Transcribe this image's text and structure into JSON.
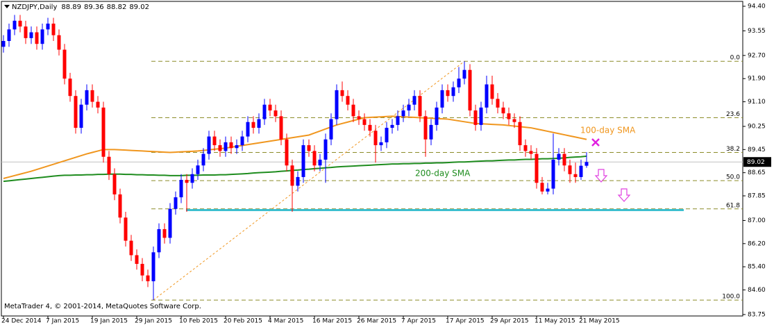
{
  "chart_data": {
    "type": "candlestick",
    "symbol": "NZDJPY,Daily",
    "footer": "MetaTrader 4, © 2001-2014, MetaQuotes Software Corp.",
    "up_color": "#0000ff",
    "down_color": "#ff0000",
    "ylim": [
      83.7,
      94.52
    ],
    "yticks": [
      {
        "value": 94.4,
        "label": "94.40"
      },
      93.55,
      {
        "value": 92.7,
        "label": "92.70"
      },
      {
        "value": 91.9,
        "label": "91.90"
      },
      {
        "value": 91.1,
        "label": "91.10"
      },
      90.25,
      89.45,
      88.65,
      87.85,
      {
        "value": 87,
        "label": "87.00"
      },
      {
        "value": 86.2,
        "label": "86.20"
      },
      {
        "value": 85.4,
        "label": "85.40"
      },
      {
        "value": 84.6,
        "label": "84.60"
      },
      83.75
    ],
    "categories": [
      "24 Dec 2014",
      null,
      null,
      null,
      null,
      null,
      null,
      null,
      "7 Jan 2015",
      null,
      null,
      null,
      null,
      null,
      null,
      null,
      "19 Jan 2015",
      null,
      null,
      null,
      null,
      null,
      null,
      null,
      "29 Jan 2015",
      null,
      null,
      null,
      null,
      null,
      null,
      null,
      "10 Feb 2015",
      null,
      null,
      null,
      null,
      null,
      null,
      null,
      "20 Feb 2015",
      null,
      null,
      null,
      null,
      null,
      null,
      null,
      "4 Mar 2015",
      null,
      null,
      null,
      null,
      null,
      null,
      null,
      "16 Mar 2015",
      null,
      null,
      null,
      null,
      null,
      null,
      null,
      "26 Mar 2015",
      null,
      null,
      null,
      null,
      null,
      null,
      null,
      "7 Apr 2015",
      null,
      null,
      null,
      null,
      null,
      null,
      null,
      "17 Apr 2015",
      null,
      null,
      null,
      null,
      null,
      null,
      null,
      "29 Apr 2015",
      null,
      null,
      null,
      null,
      null,
      null,
      null,
      "11 May 2015",
      null,
      null,
      null,
      null,
      null,
      null,
      null,
      "21 May 2015",
      null
    ],
    "ohlc": [
      [
        93.0,
        93.4,
        92.8,
        93.2
      ],
      [
        93.2,
        93.8,
        93.0,
        93.6
      ],
      [
        93.6,
        94.1,
        93.4,
        93.9
      ],
      [
        93.9,
        94.1,
        93.5,
        93.7
      ],
      [
        93.7,
        93.9,
        93.1,
        93.3
      ],
      [
        93.3,
        93.7,
        93.1,
        93.5
      ],
      [
        93.5,
        93.7,
        92.9,
        93.1
      ],
      [
        93.1,
        93.8,
        92.9,
        93.6
      ],
      [
        93.6,
        94.0,
        93.4,
        93.8
      ],
      [
        93.8,
        94.0,
        93.2,
        93.4
      ],
      [
        93.4,
        93.6,
        92.7,
        92.9
      ],
      [
        92.9,
        93.1,
        91.7,
        91.9
      ],
      [
        91.9,
        92.1,
        91.1,
        91.3
      ],
      [
        91.3,
        91.5,
        90.0,
        90.2
      ],
      [
        90.2,
        91.2,
        90.0,
        91.0
      ],
      [
        91.0,
        91.7,
        90.8,
        91.5
      ],
      [
        91.5,
        91.7,
        90.9,
        91.1
      ],
      [
        91.1,
        91.3,
        90.7,
        90.9
      ],
      [
        90.9,
        91.1,
        89.0,
        89.2
      ],
      [
        89.2,
        89.4,
        88.4,
        88.6
      ],
      [
        88.6,
        88.8,
        87.7,
        87.9
      ],
      [
        87.9,
        88.1,
        86.9,
        87.1
      ],
      [
        87.1,
        87.3,
        86.1,
        86.3
      ],
      [
        86.3,
        86.5,
        85.6,
        85.8
      ],
      [
        85.8,
        86.0,
        85.3,
        85.5
      ],
      [
        85.5,
        85.7,
        84.9,
        85.1
      ],
      [
        85.1,
        85.3,
        84.7,
        84.9
      ],
      [
        84.9,
        86.1,
        84.25,
        85.9
      ],
      [
        85.9,
        86.9,
        85.7,
        86.7
      ],
      [
        86.7,
        86.9,
        86.2,
        86.4
      ],
      [
        86.4,
        87.6,
        86.2,
        87.4
      ],
      [
        87.4,
        88.0,
        87.2,
        87.8
      ],
      [
        87.8,
        88.6,
        87.6,
        88.4
      ],
      [
        88.4,
        88.6,
        87.3,
        88.3
      ],
      [
        88.3,
        88.8,
        88.1,
        88.6
      ],
      [
        88.6,
        89.1,
        88.4,
        88.9
      ],
      [
        88.9,
        89.5,
        88.7,
        89.3
      ],
      [
        89.3,
        90.1,
        89.1,
        89.9
      ],
      [
        89.9,
        90.1,
        89.4,
        89.6
      ],
      [
        89.6,
        89.8,
        89.2,
        89.4
      ],
      [
        89.4,
        89.9,
        89.2,
        89.7
      ],
      [
        89.7,
        89.9,
        89.3,
        89.5
      ],
      [
        89.5,
        89.8,
        89.3,
        89.6
      ],
      [
        89.6,
        90.1,
        89.4,
        89.9
      ],
      [
        89.9,
        90.6,
        89.7,
        90.4
      ],
      [
        90.4,
        90.6,
        90.0,
        90.2
      ],
      [
        90.2,
        90.7,
        90.0,
        90.5
      ],
      [
        90.5,
        91.2,
        90.3,
        91.0
      ],
      [
        91.0,
        91.2,
        90.6,
        90.8
      ],
      [
        90.8,
        91.0,
        90.4,
        90.6
      ],
      [
        90.6,
        90.8,
        89.6,
        89.8
      ],
      [
        89.8,
        90.0,
        88.7,
        88.9
      ],
      [
        88.9,
        89.1,
        87.3,
        88.2
      ],
      [
        88.2,
        88.7,
        88.0,
        88.5
      ],
      [
        88.5,
        89.8,
        88.3,
        89.6
      ],
      [
        89.6,
        89.8,
        89.2,
        89.4
      ],
      [
        89.4,
        89.6,
        88.7,
        88.9
      ],
      [
        88.9,
        89.3,
        88.7,
        89.1
      ],
      [
        89.1,
        90.0,
        88.3,
        89.8
      ],
      [
        89.8,
        90.7,
        89.6,
        90.5
      ],
      [
        90.5,
        91.7,
        90.3,
        91.5
      ],
      [
        91.5,
        91.8,
        91.1,
        91.3
      ],
      [
        91.3,
        91.5,
        90.8,
        91.0
      ],
      [
        91.0,
        91.2,
        90.4,
        90.6
      ],
      [
        90.6,
        90.8,
        90.3,
        90.5
      ],
      [
        90.5,
        90.7,
        90.1,
        90.3
      ],
      [
        90.3,
        90.5,
        89.9,
        90.1
      ],
      [
        90.1,
        90.3,
        89.0,
        89.6
      ],
      [
        89.6,
        89.9,
        89.4,
        89.7
      ],
      [
        89.7,
        90.4,
        89.5,
        90.2
      ],
      [
        90.2,
        90.5,
        90.0,
        90.3
      ],
      [
        90.3,
        90.8,
        90.1,
        90.6
      ],
      [
        90.6,
        91.0,
        90.4,
        90.8
      ],
      [
        90.8,
        91.2,
        90.6,
        91.0
      ],
      [
        91.0,
        91.5,
        90.8,
        91.3
      ],
      [
        91.3,
        91.5,
        90.4,
        90.6
      ],
      [
        90.6,
        90.8,
        89.2,
        89.8
      ],
      [
        89.8,
        90.5,
        89.6,
        90.3
      ],
      [
        90.3,
        91.1,
        90.1,
        90.9
      ],
      [
        90.9,
        91.7,
        90.7,
        91.5
      ],
      [
        91.5,
        91.7,
        91.1,
        91.3
      ],
      [
        91.3,
        91.8,
        91.1,
        91.6
      ],
      [
        91.6,
        92.3,
        91.4,
        91.9
      ],
      [
        91.9,
        92.5,
        91.7,
        92.2
      ],
      [
        92.2,
        92.4,
        90.6,
        90.8
      ],
      [
        90.8,
        91.0,
        90.1,
        90.3
      ],
      [
        90.3,
        91.1,
        90.1,
        90.9
      ],
      [
        90.9,
        92.0,
        90.7,
        91.7
      ],
      [
        91.7,
        92.0,
        91.0,
        91.2
      ],
      [
        91.2,
        91.4,
        90.7,
        90.9
      ],
      [
        90.9,
        91.1,
        90.5,
        90.7
      ],
      [
        90.7,
        90.9,
        90.3,
        90.5
      ],
      [
        90.5,
        90.7,
        90.2,
        90.4
      ],
      [
        90.4,
        90.6,
        89.4,
        89.6
      ],
      [
        89.6,
        89.8,
        89.2,
        89.4
      ],
      [
        89.4,
        89.6,
        89.1,
        89.3
      ],
      [
        89.3,
        89.5,
        88.1,
        88.3
      ],
      [
        88.3,
        88.5,
        87.9,
        88.0
      ],
      [
        88.0,
        88.3,
        87.9,
        88.1
      ],
      [
        88.1,
        90.0,
        87.9,
        89.1
      ],
      [
        89.1,
        89.5,
        88.9,
        89.3
      ],
      [
        89.3,
        89.5,
        88.7,
        88.9
      ],
      [
        88.9,
        89.1,
        88.3,
        88.6
      ],
      [
        88.6,
        89.0,
        88.3,
        88.5
      ],
      [
        88.5,
        89.1,
        88.4,
        88.89
      ],
      [
        88.89,
        89.36,
        88.82,
        89.02
      ]
    ],
    "series": [
      {
        "name": "100-day SMA",
        "color": "#f0961e",
        "values": [
          88.45,
          88.5,
          88.55,
          88.6,
          88.65,
          88.7,
          88.76,
          88.82,
          88.88,
          88.94,
          89.0,
          89.06,
          89.12,
          89.18,
          89.24,
          89.3,
          89.35,
          89.4,
          89.45,
          89.45,
          89.45,
          89.44,
          89.43,
          89.42,
          89.41,
          89.4,
          89.39,
          89.38,
          89.37,
          89.36,
          89.35,
          89.36,
          89.37,
          89.38,
          89.39,
          89.4,
          89.42,
          89.44,
          89.46,
          89.48,
          89.5,
          89.53,
          89.56,
          89.59,
          89.62,
          89.65,
          89.68,
          89.71,
          89.74,
          89.77,
          89.8,
          89.83,
          89.86,
          89.89,
          89.92,
          89.95,
          90.02,
          90.09,
          90.16,
          90.23,
          90.3,
          90.35,
          90.4,
          90.45,
          90.5,
          90.55,
          90.56,
          90.57,
          90.58,
          90.59,
          90.6,
          90.59,
          90.58,
          90.57,
          90.56,
          90.55,
          90.54,
          90.53,
          90.52,
          90.51,
          90.5,
          90.47,
          90.44,
          90.41,
          90.38,
          90.35,
          90.34,
          90.33,
          90.32,
          90.31,
          90.3,
          90.28,
          90.26,
          90.24,
          90.22,
          90.2,
          90.16,
          90.12,
          90.08,
          90.04,
          90.0,
          89.96,
          89.92,
          89.88,
          89.84,
          89.8
        ]
      },
      {
        "name": "200-day SMA",
        "color": "#1e8c1e",
        "values": [
          88.35,
          88.37,
          88.39,
          88.41,
          88.43,
          88.45,
          88.47,
          88.49,
          88.51,
          88.53,
          88.55,
          88.56,
          88.56,
          88.57,
          88.57,
          88.58,
          88.58,
          88.59,
          88.59,
          88.6,
          88.6,
          88.6,
          88.59,
          88.59,
          88.58,
          88.58,
          88.57,
          88.57,
          88.56,
          88.56,
          88.55,
          88.55,
          88.55,
          88.56,
          88.56,
          88.56,
          88.57,
          88.57,
          88.57,
          88.58,
          88.58,
          88.59,
          88.6,
          88.61,
          88.62,
          88.64,
          88.65,
          88.66,
          88.67,
          88.68,
          88.7,
          88.71,
          88.73,
          88.74,
          88.76,
          88.77,
          88.79,
          88.8,
          88.82,
          88.83,
          88.85,
          88.86,
          88.87,
          88.88,
          88.89,
          88.9,
          88.91,
          88.92,
          88.93,
          88.94,
          88.95,
          88.95,
          88.96,
          88.96,
          88.97,
          88.97,
          88.98,
          88.98,
          88.99,
          88.99,
          89.0,
          89.01,
          89.02,
          89.02,
          89.03,
          89.04,
          89.05,
          89.06,
          89.06,
          89.07,
          89.08,
          89.09,
          89.09,
          89.1,
          89.11,
          89.11,
          89.12,
          89.13,
          89.13,
          89.14,
          89.15,
          89.16,
          89.18,
          89.19,
          89.2,
          89.22
        ]
      }
    ],
    "fib_levels": [
      {
        "label": "0.0",
        "value": 92.5
      },
      {
        "label": "23.6",
        "value": 90.55
      },
      {
        "label": "38.2",
        "value": 89.35
      },
      {
        "label": "50.0",
        "value": 88.375
      },
      {
        "label": "61.8",
        "value": 87.4
      },
      {
        "label": "100.0",
        "value": 84.25
      }
    ],
    "fib_color": "#8c8c28",
    "support_line": {
      "value": 87.36,
      "color": "#3cbfcf"
    }
  }
}
